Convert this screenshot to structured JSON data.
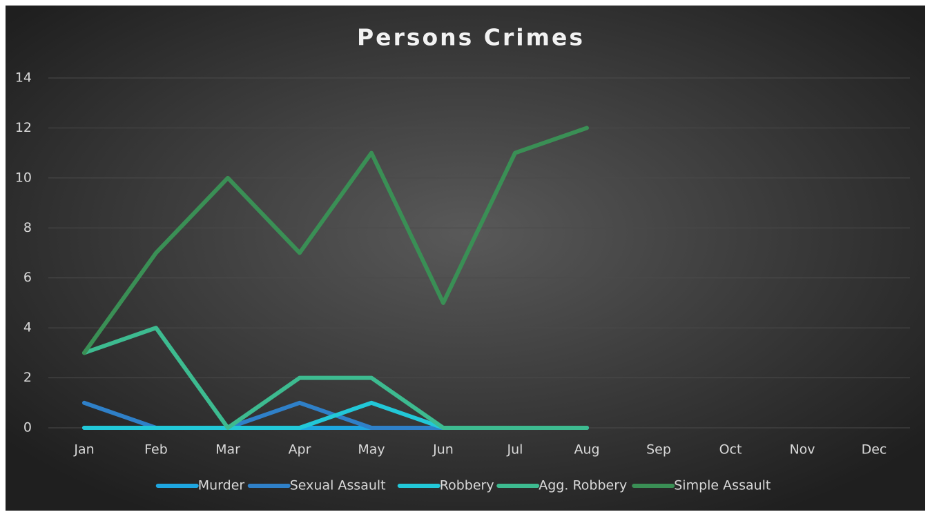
{
  "chart_data": {
    "type": "line",
    "title": "Persons Crimes",
    "categories": [
      "Jan",
      "Feb",
      "Mar",
      "Apr",
      "May",
      "Jun",
      "Jul",
      "Aug",
      "Sep",
      "Oct",
      "Nov",
      "Dec"
    ],
    "series": [
      {
        "name": "Murder",
        "color": "#1ea6e0",
        "values": [
          0,
          0,
          0,
          0,
          0,
          0,
          0,
          0,
          null,
          null,
          null,
          null
        ]
      },
      {
        "name": "Sexual Assault",
        "color": "#2f80c8",
        "values": [
          1,
          0,
          0,
          1,
          0,
          0,
          0,
          0,
          null,
          null,
          null,
          null
        ]
      },
      {
        "name": "Robbery",
        "color": "#22c8d8",
        "values": [
          0,
          0,
          0,
          0,
          1,
          0,
          0,
          0,
          null,
          null,
          null,
          null
        ]
      },
      {
        "name": "Agg. Robbery",
        "color": "#3dbb90",
        "values": [
          3,
          4,
          0,
          2,
          2,
          0,
          0,
          0,
          null,
          null,
          null,
          null
        ]
      },
      {
        "name": "Simple Assault",
        "color": "#3a8f55",
        "values": [
          3,
          7,
          10,
          7,
          11,
          5,
          11,
          12,
          null,
          null,
          null,
          null
        ]
      }
    ],
    "ylim": [
      0,
      14
    ],
    "yticks": [
      0,
      2,
      4,
      6,
      8,
      10,
      12,
      14
    ],
    "grid": true,
    "legend": "bottom"
  }
}
